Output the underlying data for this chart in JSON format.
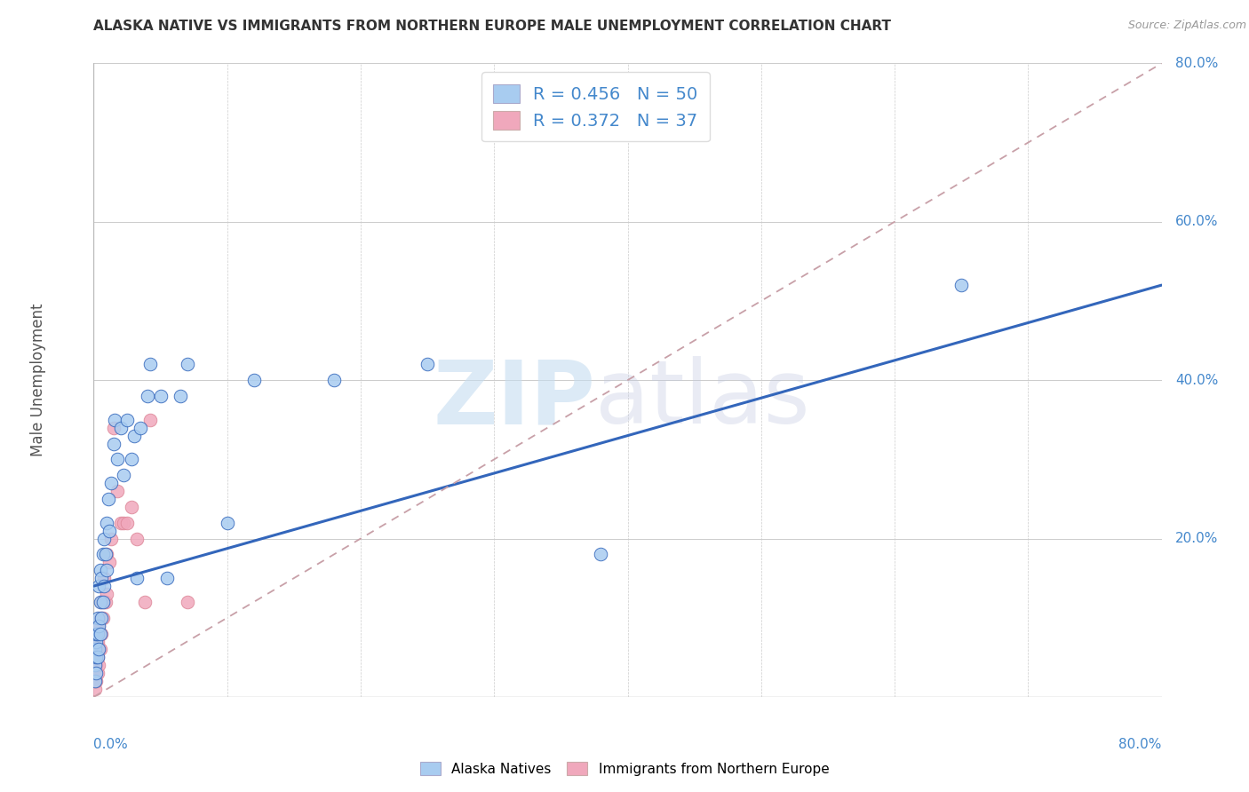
{
  "title": "ALASKA NATIVE VS IMMIGRANTS FROM NORTHERN EUROPE MALE UNEMPLOYMENT CORRELATION CHART",
  "source": "Source: ZipAtlas.com",
  "ylabel": "Male Unemployment",
  "legend1_label": "Alaska Natives",
  "legend2_label": "Immigrants from Northern Europe",
  "R1": 0.456,
  "N1": 50,
  "R2": 0.372,
  "N2": 37,
  "color1": "#a8ccf0",
  "color2": "#f0a8bc",
  "line1_color": "#3366bb",
  "line2_color": "#dd8899",
  "blue_text": "#4488cc",
  "grid_color": "#cccccc",
  "line1_x0": 0.0,
  "line1_y0": 0.14,
  "line1_x1": 0.8,
  "line1_y1": 0.52,
  "line2_x0": 0.0,
  "line2_y0": 0.0,
  "line2_x1": 0.8,
  "line2_y1": 0.8,
  "alaska_x": [
    0.001,
    0.001,
    0.001,
    0.002,
    0.002,
    0.002,
    0.002,
    0.003,
    0.003,
    0.003,
    0.004,
    0.004,
    0.004,
    0.005,
    0.005,
    0.005,
    0.006,
    0.006,
    0.007,
    0.007,
    0.008,
    0.008,
    0.009,
    0.01,
    0.01,
    0.011,
    0.012,
    0.013,
    0.015,
    0.016,
    0.018,
    0.02,
    0.022,
    0.025,
    0.028,
    0.03,
    0.032,
    0.035,
    0.04,
    0.042,
    0.05,
    0.055,
    0.065,
    0.07,
    0.1,
    0.12,
    0.18,
    0.25,
    0.38,
    0.65
  ],
  "alaska_y": [
    0.02,
    0.04,
    0.06,
    0.03,
    0.05,
    0.07,
    0.08,
    0.05,
    0.08,
    0.1,
    0.06,
    0.09,
    0.14,
    0.08,
    0.12,
    0.16,
    0.1,
    0.15,
    0.12,
    0.18,
    0.14,
    0.2,
    0.18,
    0.16,
    0.22,
    0.25,
    0.21,
    0.27,
    0.32,
    0.35,
    0.3,
    0.34,
    0.28,
    0.35,
    0.3,
    0.33,
    0.15,
    0.34,
    0.38,
    0.42,
    0.38,
    0.15,
    0.38,
    0.42,
    0.22,
    0.4,
    0.4,
    0.42,
    0.18,
    0.52
  ],
  "imm_x": [
    0.001,
    0.001,
    0.001,
    0.001,
    0.001,
    0.002,
    0.002,
    0.002,
    0.002,
    0.003,
    0.003,
    0.003,
    0.004,
    0.004,
    0.004,
    0.005,
    0.005,
    0.006,
    0.006,
    0.007,
    0.008,
    0.008,
    0.009,
    0.01,
    0.01,
    0.012,
    0.013,
    0.015,
    0.018,
    0.02,
    0.022,
    0.025,
    0.028,
    0.032,
    0.038,
    0.042,
    0.07
  ],
  "imm_y": [
    0.01,
    0.02,
    0.03,
    0.04,
    0.05,
    0.02,
    0.04,
    0.06,
    0.08,
    0.03,
    0.05,
    0.07,
    0.04,
    0.06,
    0.09,
    0.06,
    0.1,
    0.08,
    0.12,
    0.1,
    0.12,
    0.15,
    0.12,
    0.13,
    0.18,
    0.17,
    0.2,
    0.34,
    0.26,
    0.22,
    0.22,
    0.22,
    0.24,
    0.2,
    0.12,
    0.35,
    0.12
  ],
  "xlim": [
    0.0,
    0.8
  ],
  "ylim": [
    0.0,
    0.8
  ],
  "ytick_vals": [
    0.0,
    0.2,
    0.4,
    0.6,
    0.8
  ],
  "ytick_labels": [
    "",
    "20.0%",
    "40.0%",
    "60.0%",
    "80.0%"
  ]
}
